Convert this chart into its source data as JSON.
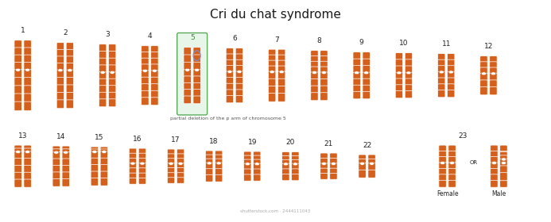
{
  "title": "Cri du chat syndrome",
  "title_fontsize": 11,
  "title_color": "#1a1a1a",
  "background_color": "#ffffff",
  "chrom_color_main": "#D4601C",
  "chrom_color_light": "#E8823A",
  "highlight_box_color": "#e8f5e9",
  "highlight_box_edge": "#5aaa5a",
  "highlight_number_color": "#3a8a3a",
  "deletion_circle_color": "#8888bb",
  "label_color": "#222222",
  "annotation_color": "#555555",
  "watermark": "shutterstock.com · 2444111043",
  "row1_labels": [
    "1",
    "2",
    "3",
    "4",
    "5",
    "6",
    "7",
    "8",
    "9",
    "10",
    "11",
    "12"
  ],
  "row2_labels": [
    "13",
    "14",
    "15",
    "16",
    "17",
    "18",
    "19",
    "20",
    "21",
    "22",
    "23"
  ],
  "note_text": "partial deletion of the p arm of chromosome 5"
}
